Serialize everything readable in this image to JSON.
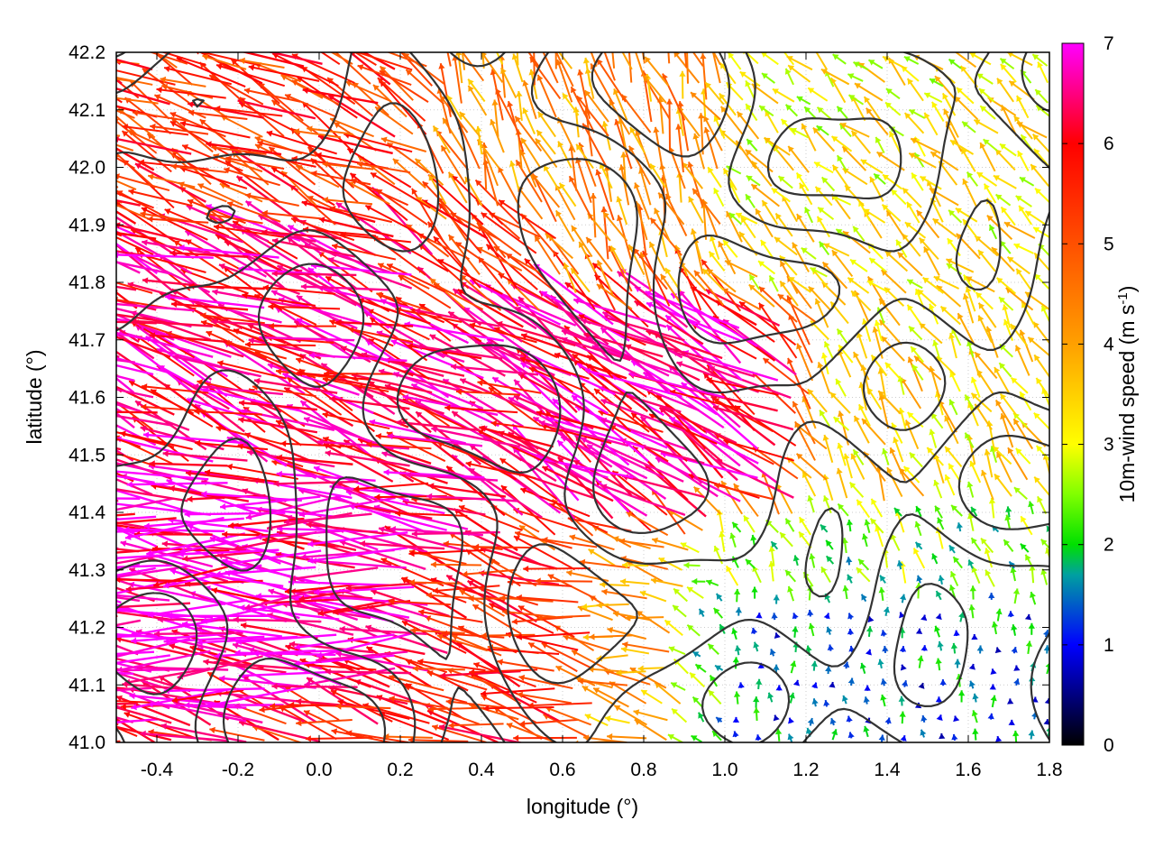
{
  "chart_data": {
    "type": "quiver",
    "title": "",
    "xlabel": "longitude (°)",
    "ylabel": "latitude (°)",
    "xlim": [
      -0.5,
      1.8
    ],
    "ylim": [
      41.0,
      42.2
    ],
    "xticks": [
      -0.4,
      -0.2,
      0.0,
      0.2,
      0.4,
      0.6,
      0.8,
      1.0,
      1.2,
      1.4,
      1.6,
      1.8
    ],
    "xtick_labels": [
      "-0.4",
      "-0.2",
      "0.0",
      "0.2",
      "0.4",
      "0.6",
      "0.8",
      "1.0",
      "1.2",
      "1.4",
      "1.6",
      "1.8"
    ],
    "yticks": [
      41.0,
      41.1,
      41.2,
      41.3,
      41.4,
      41.5,
      41.6,
      41.7,
      41.8,
      41.9,
      42.0,
      42.1,
      42.2
    ],
    "ytick_labels": [
      "41.0",
      "41.1",
      "41.2",
      "41.3",
      "41.4",
      "41.5",
      "41.6",
      "41.7",
      "41.8",
      "41.9",
      "42.0",
      "42.1",
      "42.2"
    ],
    "grid": true,
    "colorbar": {
      "label_prefix": "10m-wind speed (m s",
      "label_sup": "-1",
      "label_suffix": ")",
      "range": [
        0,
        7
      ],
      "ticks": [
        0,
        1,
        2,
        3,
        4,
        5,
        6,
        7
      ],
      "tick_labels": [
        "0",
        "1",
        "2",
        "3",
        "4",
        "5",
        "6",
        "7"
      ],
      "colormap": [
        {
          "v": 0.0,
          "c": "#000000"
        },
        {
          "v": 1.0,
          "c": "#0000ff"
        },
        {
          "v": 1.7,
          "c": "#00a0a0"
        },
        {
          "v": 2.0,
          "c": "#00e000"
        },
        {
          "v": 2.5,
          "c": "#80ff00"
        },
        {
          "v": 3.0,
          "c": "#ffff00"
        },
        {
          "v": 4.0,
          "c": "#ffa000"
        },
        {
          "v": 5.0,
          "c": "#ff5000"
        },
        {
          "v": 6.0,
          "c": "#ff0000"
        },
        {
          "v": 6.5,
          "c": "#ff0080"
        },
        {
          "v": 7.0,
          "c": "#ff00ff"
        }
      ]
    },
    "contour_color": "#333333",
    "vector_field_regions": [
      {
        "lon_range": [
          -0.5,
          0.3
        ],
        "lat_range": [
          41.15,
          41.45
        ],
        "speed": 6.8,
        "dir_deg": 175
      },
      {
        "lon_range": [
          -0.5,
          0.6
        ],
        "lat_range": [
          41.45,
          41.9
        ],
        "speed": 6.3,
        "dir_deg": 160
      },
      {
        "lon_range": [
          -0.5,
          0.3
        ],
        "lat_range": [
          41.9,
          42.2
        ],
        "speed": 5.4,
        "dir_deg": 155
      },
      {
        "lon_range": [
          0.3,
          0.9
        ],
        "lat_range": [
          41.0,
          41.3
        ],
        "speed": 5.6,
        "dir_deg": 165
      },
      {
        "lon_range": [
          0.6,
          1.2
        ],
        "lat_range": [
          41.4,
          41.75
        ],
        "speed": 6.5,
        "dir_deg": 150
      },
      {
        "lon_range": [
          0.3,
          1.0
        ],
        "lat_range": [
          41.75,
          42.2
        ],
        "speed": 4.2,
        "dir_deg": 110
      },
      {
        "lon_range": [
          1.0,
          1.8
        ],
        "lat_range": [
          41.75,
          42.2
        ],
        "speed": 3.2,
        "dir_deg": 135
      },
      {
        "lon_range": [
          1.2,
          1.8
        ],
        "lat_range": [
          41.4,
          41.75
        ],
        "speed": 3.4,
        "dir_deg": 120
      },
      {
        "lon_range": [
          1.0,
          1.8
        ],
        "lat_range": [
          41.25,
          41.4
        ],
        "speed": 2.3,
        "dir_deg": 115
      },
      {
        "lon_range": [
          0.9,
          1.8
        ],
        "lat_range": [
          41.0,
          41.25
        ],
        "speed": 1.4,
        "dir_deg": 90
      },
      {
        "lon_range": [
          0.7,
          1.0
        ],
        "lat_range": [
          41.0,
          41.3
        ],
        "speed": 2.6,
        "dir_deg": 170
      }
    ],
    "contour_levels_note": ""
  }
}
